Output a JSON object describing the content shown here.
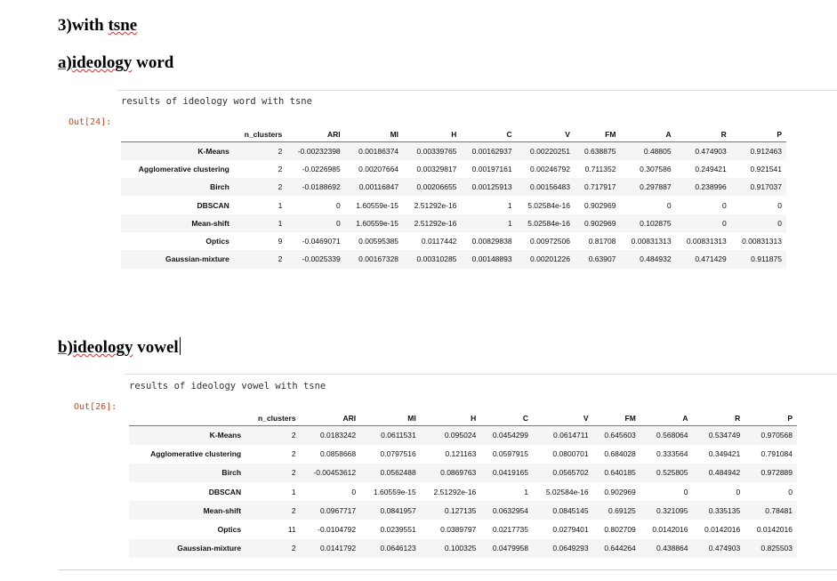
{
  "headings": {
    "main_prefix": "3)with ",
    "main_word": "tsne",
    "a_prefix": "a)",
    "a_link": "ideology",
    "a_suffix": " word",
    "b_prefix": "b)",
    "b_link": "ideology",
    "b_suffix": " vowel"
  },
  "cell1": {
    "prompt": "Out[24]:",
    "caption": "results of ideology word with tsne",
    "columns": [
      "",
      "n_clusters",
      "ARI",
      "MI",
      "H",
      "C",
      "V",
      "FM",
      "A",
      "R",
      "P"
    ],
    "rows": [
      [
        "K-Means",
        "2",
        "-0.00232398",
        "0.00186374",
        "0.00339765",
        "0.00162937",
        "0.00220251",
        "0.638875",
        "0.48805",
        "0.474903",
        "0.912463"
      ],
      [
        "Agglomerative clustering",
        "2",
        "-0.0226985",
        "0.00207664",
        "0.00329817",
        "0.00197161",
        "0.00246792",
        "0.711352",
        "0.307586",
        "0.249421",
        "0.921541"
      ],
      [
        "Birch",
        "2",
        "-0.0188692",
        "0.00116847",
        "0.00206655",
        "0.00125913",
        "0.00156483",
        "0.717917",
        "0.297887",
        "0.238996",
        "0.917037"
      ],
      [
        "DBSCAN",
        "1",
        "0",
        "1.60559e-15",
        "2.51292e-16",
        "1",
        "5.02584e-16",
        "0.902969",
        "0",
        "0",
        "0"
      ],
      [
        "Mean-shift",
        "1",
        "0",
        "1.60559e-15",
        "2.51292e-16",
        "1",
        "5.02584e-16",
        "0.902969",
        "0.102875",
        "0",
        "0"
      ],
      [
        "Optics",
        "9",
        "-0.0469071",
        "0.00595385",
        "0.0117442",
        "0.00829838",
        "0.00972506",
        "0.81708",
        "0.00831313",
        "0.00831313",
        "0.00831313"
      ],
      [
        "Gaussian-mixture",
        "2",
        "-0.0025339",
        "0.00167328",
        "0.00310285",
        "0.00148893",
        "0.00201226",
        "0.63907",
        "0.484932",
        "0.471429",
        "0.911875"
      ]
    ]
  },
  "cell2": {
    "prompt": "Out[26]:",
    "caption": "results of ideology vowel with tsne",
    "columns": [
      "",
      "n_clusters",
      "ARI",
      "MI",
      "H",
      "C",
      "V",
      "FM",
      "A",
      "R",
      "P"
    ],
    "rows": [
      [
        "K-Means",
        "2",
        "0.0183242",
        "0.0611531",
        "0.095024",
        "0.0454299",
        "0.0614711",
        "0.645603",
        "0.568064",
        "0.534749",
        "0.970568"
      ],
      [
        "Agglomerative clustering",
        "2",
        "0.0858668",
        "0.0797516",
        "0.121163",
        "0.0597915",
        "0.0800701",
        "0.684028",
        "0.333564",
        "0.349421",
        "0.791084"
      ],
      [
        "Birch",
        "2",
        "-0.00453612",
        "0.0562488",
        "0.0869763",
        "0.0419165",
        "0.0565702",
        "0.640185",
        "0.525805",
        "0.484942",
        "0.972889"
      ],
      [
        "DBSCAN",
        "1",
        "0",
        "1.60559e-15",
        "2.51292e-16",
        "1",
        "5.02584e-16",
        "0.902969",
        "0",
        "0",
        "0"
      ],
      [
        "Mean-shift",
        "2",
        "0.0967717",
        "0.0841957",
        "0.127135",
        "0.0632954",
        "0.0845145",
        "0.69125",
        "0.321095",
        "0.335135",
        "0.78481"
      ],
      [
        "Optics",
        "11",
        "-0.0104792",
        "0.0239551",
        "0.0389797",
        "0.0217735",
        "0.0279401",
        "0.802709",
        "0.0142016",
        "0.0142016",
        "0.0142016"
      ],
      [
        "Gaussian-mixture",
        "2",
        "0.0141792",
        "0.0646123",
        "0.100325",
        "0.0479958",
        "0.0649293",
        "0.644264",
        "0.438864",
        "0.474903",
        "0.825503"
      ]
    ]
  }
}
